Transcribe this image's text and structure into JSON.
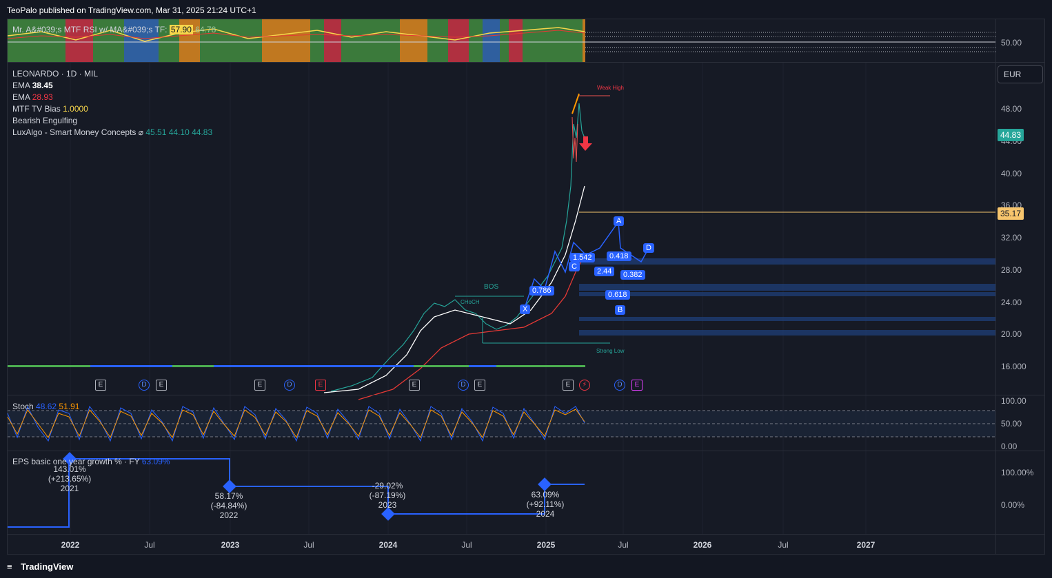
{
  "header": {
    "published_by": "TeoPalo published on TradingView.com, Mar 31, 2025 21:24 UTC+1"
  },
  "top_indicator": {
    "legend_prefix": "Mr. A&#039;s MTF RSI w/ MA&#039;s  TF:",
    "value1": "57.90",
    "value2": "64.78",
    "axis_label": "50.00"
  },
  "main_legend": {
    "symbol": "LEONARDO · 1D · MIL",
    "ema1_label": "EMA",
    "ema1_value": "38.45",
    "ema2_label": "EMA",
    "ema2_value": "28.93",
    "bias_label": "MTF TV Bias",
    "bias_value": "1.0000",
    "pattern": "Bearish Engulfing",
    "smc_label": "LuxAlgo - Smart Money Concepts",
    "smc_symbol": "⌀",
    "smc_v1": "45.51",
    "smc_v2": "44.10",
    "smc_v3": "44.83"
  },
  "currency": "EUR",
  "price_axis": [
    "48.00",
    "44.00",
    "40.00",
    "36.00",
    "32.00",
    "28.00",
    "24.00",
    "20.00",
    "16.000"
  ],
  "price_badges": {
    "last": "44.83",
    "level": "35.17",
    "last_color": "#26a69a",
    "level_color": "#f7c56d"
  },
  "smc_annotations": {
    "weak_high": "Weak High",
    "strong_low": "Strong Low",
    "bos": "BOS",
    "choch": "CHoCH"
  },
  "harmonic_labels": [
    "A",
    "B",
    "C",
    "D",
    "X",
    "0.418",
    "0.382",
    "1.542",
    "2.44",
    "0.618",
    "0.786"
  ],
  "event_markers": [
    "E",
    "D",
    "E",
    "E",
    "D",
    "E",
    "E",
    "D",
    "E",
    "E",
    "⚡",
    "D",
    "E"
  ],
  "stoch": {
    "label": "Stoch",
    "k": "48.62",
    "d": "51.91",
    "axis": [
      "100.00",
      "50.00",
      "0.00"
    ]
  },
  "eps": {
    "label": "EPS basic one year growth % · FY",
    "value": "63.09%",
    "axis": [
      "100.00%",
      "0.00%"
    ],
    "points": [
      {
        "val": "143.01%",
        "chg": "(+213.65%)",
        "year": "2021"
      },
      {
        "val": "58.17%",
        "chg": "(-84.84%)",
        "year": "2022"
      },
      {
        "val": "-29.02%",
        "chg": "(-87.19%)",
        "year": "2023"
      },
      {
        "val": "63.09%",
        "chg": "(+92.11%)",
        "year": "2024"
      }
    ]
  },
  "time_axis": [
    {
      "label": "2022",
      "major": true
    },
    {
      "label": "Jul",
      "major": false
    },
    {
      "label": "2023",
      "major": true
    },
    {
      "label": "Jul",
      "major": false
    },
    {
      "label": "2024",
      "major": true
    },
    {
      "label": "Jul",
      "major": false
    },
    {
      "label": "2025",
      "major": true
    },
    {
      "label": "Jul",
      "major": false
    },
    {
      "label": "2026",
      "major": true
    },
    {
      "label": "Jul",
      "major": false
    },
    {
      "label": "2027",
      "major": true
    }
  ],
  "footer": {
    "brand": "TradingView"
  }
}
